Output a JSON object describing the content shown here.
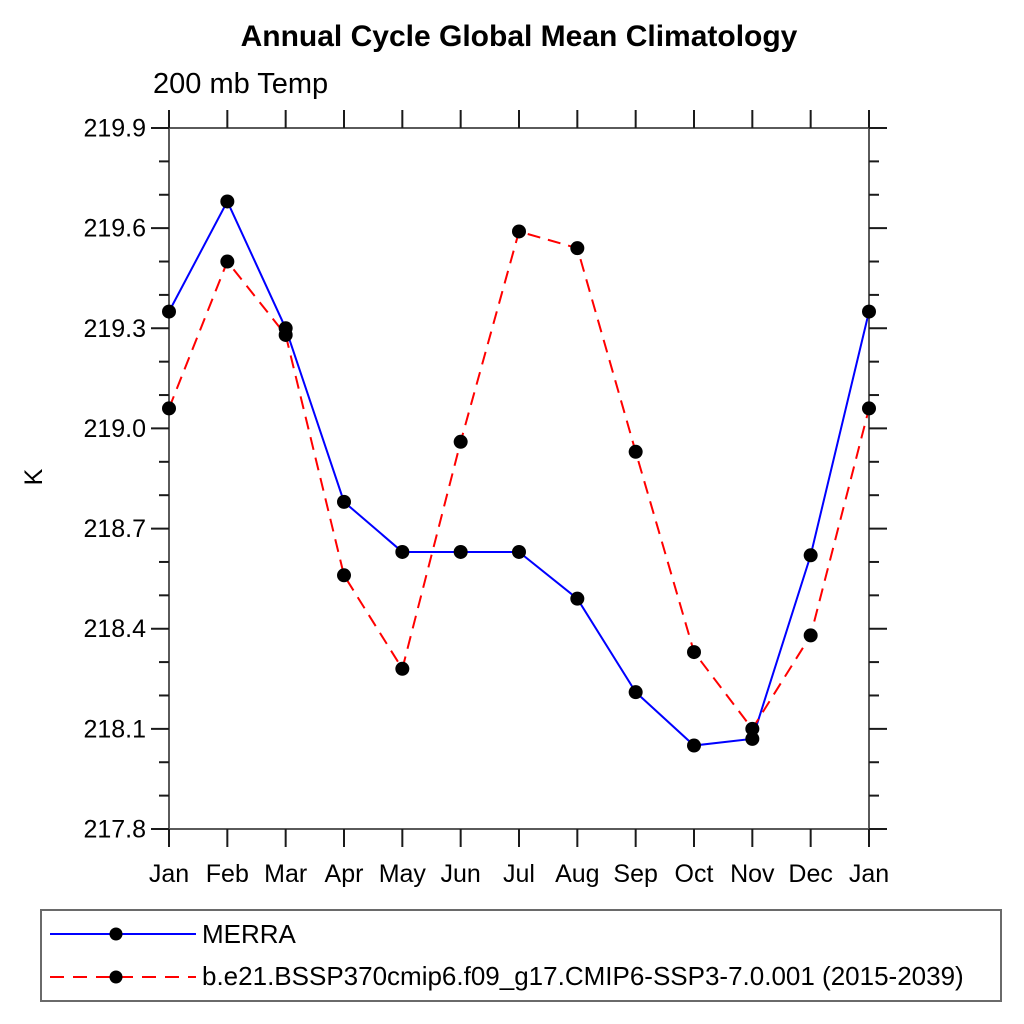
{
  "chart_data": {
    "type": "line",
    "title": "Annual Cycle Global Mean Climatology",
    "subtitle": "200 mb Temp",
    "ylabel": "K",
    "xlabel": "",
    "x_categories": [
      "Jan",
      "Feb",
      "Mar",
      "Apr",
      "May",
      "Jun",
      "Jul",
      "Aug",
      "Sep",
      "Oct",
      "Nov",
      "Dec",
      "Jan"
    ],
    "ylim": [
      217.8,
      219.9
    ],
    "y_major_step": 0.3,
    "y_minor_step": 0.1,
    "y_major_tick_labels": [
      "217.8",
      "218.1",
      "218.4",
      "218.7",
      "219.0",
      "219.3",
      "219.6",
      "219.9"
    ],
    "grid": false,
    "legend_position": "bottom",
    "marker": "filled-circle",
    "marker_color": "#000000",
    "series": [
      {
        "name": "MERRA",
        "color": "#0000ff",
        "line_style": "solid",
        "values": [
          219.35,
          219.68,
          219.3,
          218.78,
          218.63,
          218.63,
          218.63,
          218.49,
          218.21,
          218.05,
          218.07,
          218.62,
          219.35
        ]
      },
      {
        "name": "b.e21.BSSP370cmip6.f09_g17.CMIP6-SSP3-7.0.001 (2015-2039)",
        "color": "#ff0000",
        "line_style": "dashed",
        "values": [
          219.06,
          219.5,
          219.28,
          218.56,
          218.28,
          218.96,
          219.59,
          219.54,
          218.93,
          218.33,
          218.1,
          218.38,
          219.06
        ]
      }
    ]
  }
}
